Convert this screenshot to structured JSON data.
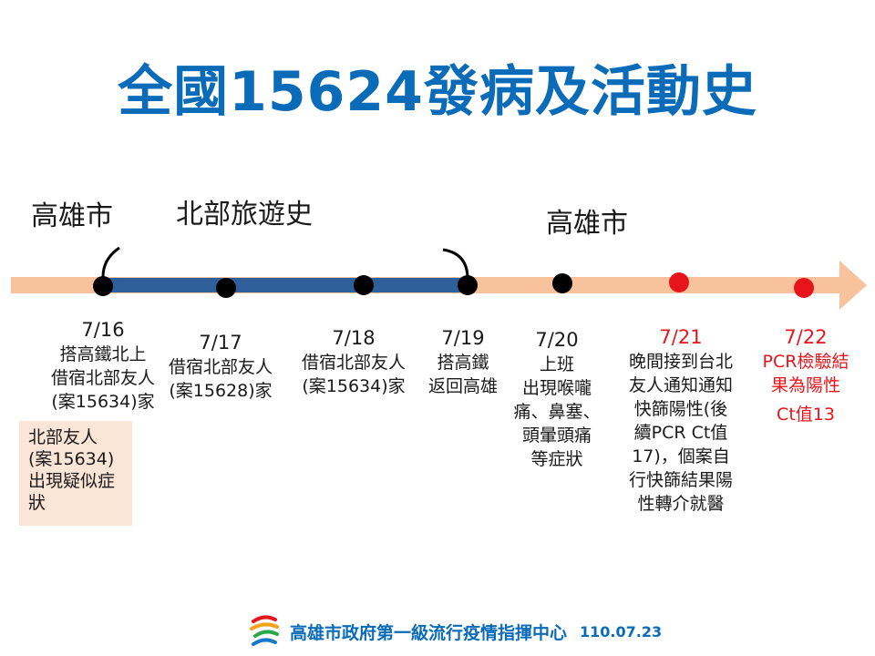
{
  "title": "全國15624發病及活動史",
  "regions": {
    "left": "高雄市",
    "north": "北部旅遊史",
    "right": "高雄市"
  },
  "events": [
    {
      "date": "7/16",
      "lines": [
        "搭高鐵北上",
        "借宿北部友人",
        "(案15634)家"
      ]
    },
    {
      "date": "7/17",
      "lines": [
        "借宿北部友人",
        "(案15628)家"
      ]
    },
    {
      "date": "7/18",
      "lines": [
        "借宿北部友人",
        "(案15634)家"
      ]
    },
    {
      "date": "7/19",
      "lines": [
        "搭高鐵",
        "返回高雄"
      ]
    },
    {
      "date": "7/20",
      "lines": [
        "上班",
        "出現喉嚨",
        "痛、鼻塞、",
        "頭暈頭痛",
        "等症狀"
      ]
    },
    {
      "date": "7/21",
      "lines": [
        "晚間接到台北",
        "友人通知通知",
        "快篩陽性(後",
        "續PCR Ct值",
        "17)，個案自",
        "行快篩結果陽",
        "性轉介就醫"
      ]
    },
    {
      "date": "7/22",
      "lines": [
        "PCR檢驗結",
        "果為陽性",
        "Ct值13"
      ]
    }
  ],
  "note": {
    "lines": [
      "北部友人",
      "(案15634)",
      "出現疑似症",
      "狀"
    ]
  },
  "footer": {
    "org": "高雄市政府第一級流行疫情指揮中心",
    "date": "110.07.23"
  },
  "colors": {
    "title": "#0a6bb8",
    "arrow": "#f8c29c",
    "north_segment": "#2e5f98",
    "dot_black": "#000000",
    "dot_red": "#e8141b",
    "note_bg": "#fbe5d6"
  },
  "icons": {
    "logo": "kaohsiung-logo-icon"
  }
}
